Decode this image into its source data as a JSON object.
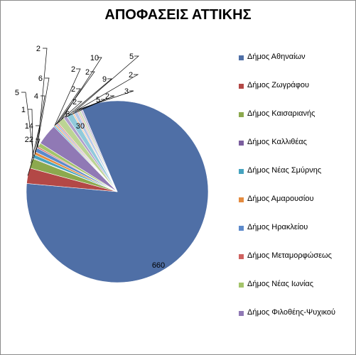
{
  "chart_data": {
    "type": "pie",
    "title": "ΑΠΟΦΑΣΕΙΣ ΑΤΤΙΚΗΣ",
    "categories": [
      "Δήμος Αθηναίων",
      "Δήμος Ζωγράφου",
      "Δήμος Καισαριανής",
      "Δήμος Καλλιθέας",
      "Δήμος Νέας Σμύρνης",
      "Δήμος Αμαρουσίου",
      "Δήμος Ηρακλείου",
      "Δήμος Μεταμορφώσεως",
      "Δήμος Νέας Ιωνίας",
      "Δήμος Φιλοθέης-Ψυχικού",
      "",
      "",
      "",
      "",
      "",
      "",
      "",
      "",
      "",
      "",
      "",
      ""
    ],
    "legend_entries": [
      "Δήμος Αθηναίων",
      "Δήμος Ζωγράφου",
      "Δήμος Καισαριανής",
      "Δήμος Καλλιθέας",
      "Δήμος Νέας Σμύρνης",
      "Δήμος Αμαρουσίου",
      "Δήμος Ηρακλείου",
      "Δήμος Μεταμορφώσεως",
      "Δήμος Νέας Ιωνίας",
      "Δήμος Φιλοθέης-Ψυχικού"
    ],
    "values": [
      660,
      22,
      14,
      1,
      5,
      4,
      6,
      2,
      6,
      30,
      2,
      2,
      2,
      2,
      10,
      5,
      9,
      2,
      5,
      2,
      3,
      3
    ],
    "data_labels": [
      "660",
      "22",
      "14",
      "1",
      "5",
      "4",
      "6",
      "2",
      "6",
      "30",
      "2",
      "2",
      "2",
      "2",
      "10",
      "5",
      "9",
      "2",
      "5",
      "2",
      "3",
      ""
    ],
    "colors": [
      "#4F6FA6",
      "#B34846",
      "#8CA94E",
      "#7B5E9E",
      "#46A3BF",
      "#E48B3F",
      "#5D8ACB",
      "#CF6260",
      "#A4C46B",
      "#9079B5",
      "#66B7CF",
      "#F2A468",
      "#8FAEDC",
      "#DB8E8C",
      "#BCD494",
      "#AF9FCB",
      "#91CADB",
      "#F7C096",
      "#B4C9E8",
      "#E7B4B3",
      "#CCDDB6",
      "#C7BEDB"
    ],
    "legend_placement": "right"
  }
}
